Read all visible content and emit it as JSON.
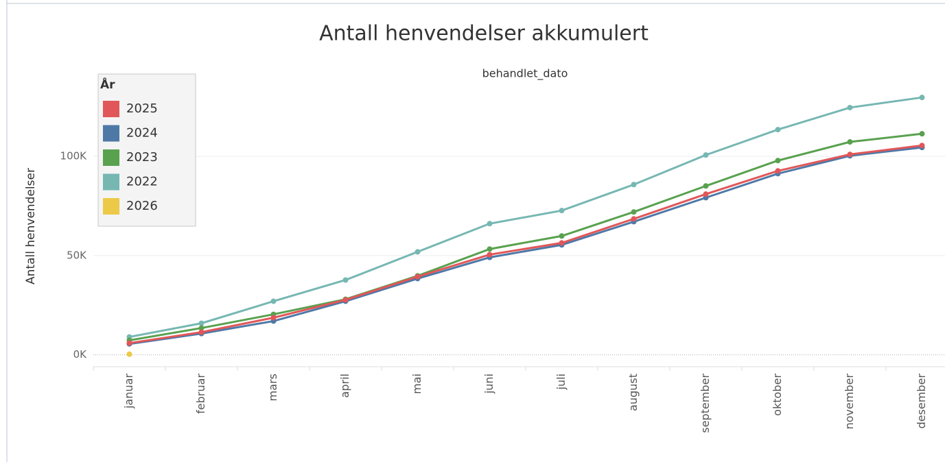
{
  "chart_data": {
    "type": "line",
    "title": "Antall henvendelser akkumulert",
    "subtitle": "behandlet_dato",
    "y_label": "Antall henvendelser",
    "legend_title": "År",
    "legend_position": "upper left",
    "grid": true,
    "categories": [
      "januar",
      "februar",
      "mars",
      "april",
      "mai",
      "juni",
      "juli",
      "august",
      "september",
      "oktober",
      "november",
      "desember"
    ],
    "ylim": [
      -6000,
      146000
    ],
    "yticks": [
      {
        "value": 0,
        "label": "0K"
      },
      {
        "value": 50000,
        "label": "50K"
      },
      {
        "value": 100000,
        "label": "100K"
      }
    ],
    "series": [
      {
        "name": "2025",
        "color": "#e15759",
        "values": [
          5900,
          11400,
          18700,
          27700,
          39400,
          50500,
          56400,
          68500,
          81000,
          92700,
          101000,
          105500
        ]
      },
      {
        "name": "2024",
        "color": "#4e79a7",
        "values": [
          5500,
          10700,
          17000,
          27000,
          38400,
          49100,
          55400,
          67100,
          79200,
          91300,
          100300,
          104500
        ]
      },
      {
        "name": "2023",
        "color": "#59a14f",
        "values": [
          7300,
          13500,
          20400,
          28000,
          39800,
          53300,
          59900,
          72000,
          85100,
          97900,
          107300,
          111400
        ]
      },
      {
        "name": "2022",
        "color": "#76b7b2",
        "values": [
          9000,
          15900,
          27000,
          37700,
          51900,
          66100,
          72700,
          85800,
          100700,
          113500,
          124600,
          129700
        ]
      },
      {
        "name": "2026",
        "color": "#edc948",
        "values": [
          300,
          null,
          null,
          null,
          null,
          null,
          null,
          null,
          null,
          null,
          null,
          null
        ]
      }
    ]
  }
}
